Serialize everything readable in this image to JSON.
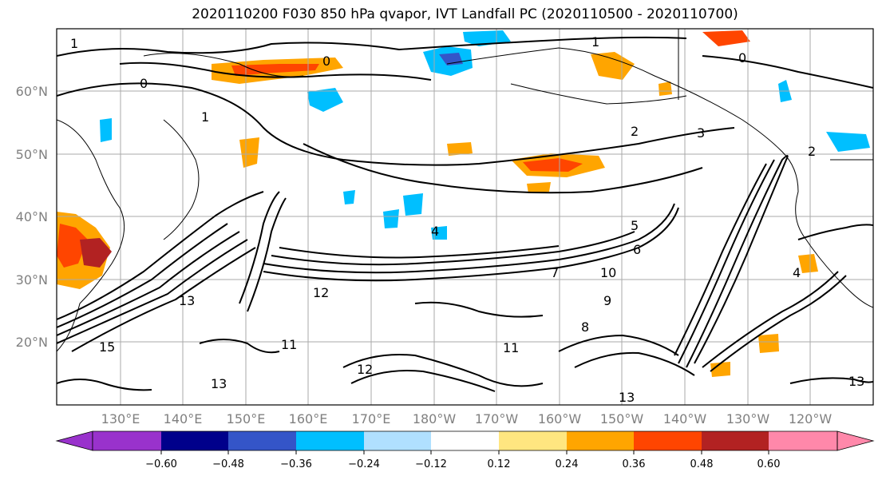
{
  "title": "2020110200 F030 850 hPa qvapor, IVT Landfall PC (2020110500 - 2020110700)",
  "lat_labels": [
    "60°N",
    "50°N",
    "40°N",
    "30°N",
    "20°N"
  ],
  "lon_labels": [
    "130°E",
    "140°E",
    "150°E",
    "160°E",
    "170°E",
    "180°W",
    "170°W",
    "160°W",
    "150°W",
    "140°W",
    "130°W",
    "120°W"
  ],
  "colorbar": {
    "tick_labels": [
      "−0.60",
      "−0.48",
      "−0.36",
      "−0.24",
      "−0.12",
      "0.12",
      "0.24",
      "0.36",
      "0.48",
      "0.60"
    ],
    "colors": [
      "#9932cc",
      "#00008b",
      "#3455c8",
      "#00bfff",
      "#b0e0ff",
      "#ffffff",
      "#ffe680",
      "#ffa500",
      "#ff4500",
      "#b22222",
      "#ff88aa"
    ]
  },
  "contour_labels": [
    "1",
    "0",
    "1",
    "0",
    "0",
    "2",
    "3",
    "4",
    "5",
    "6",
    "7",
    "10",
    "12",
    "13",
    "15",
    "11",
    "9",
    "13",
    "13",
    "13",
    "12",
    "11",
    "4",
    "8",
    "2",
    "1"
  ]
}
